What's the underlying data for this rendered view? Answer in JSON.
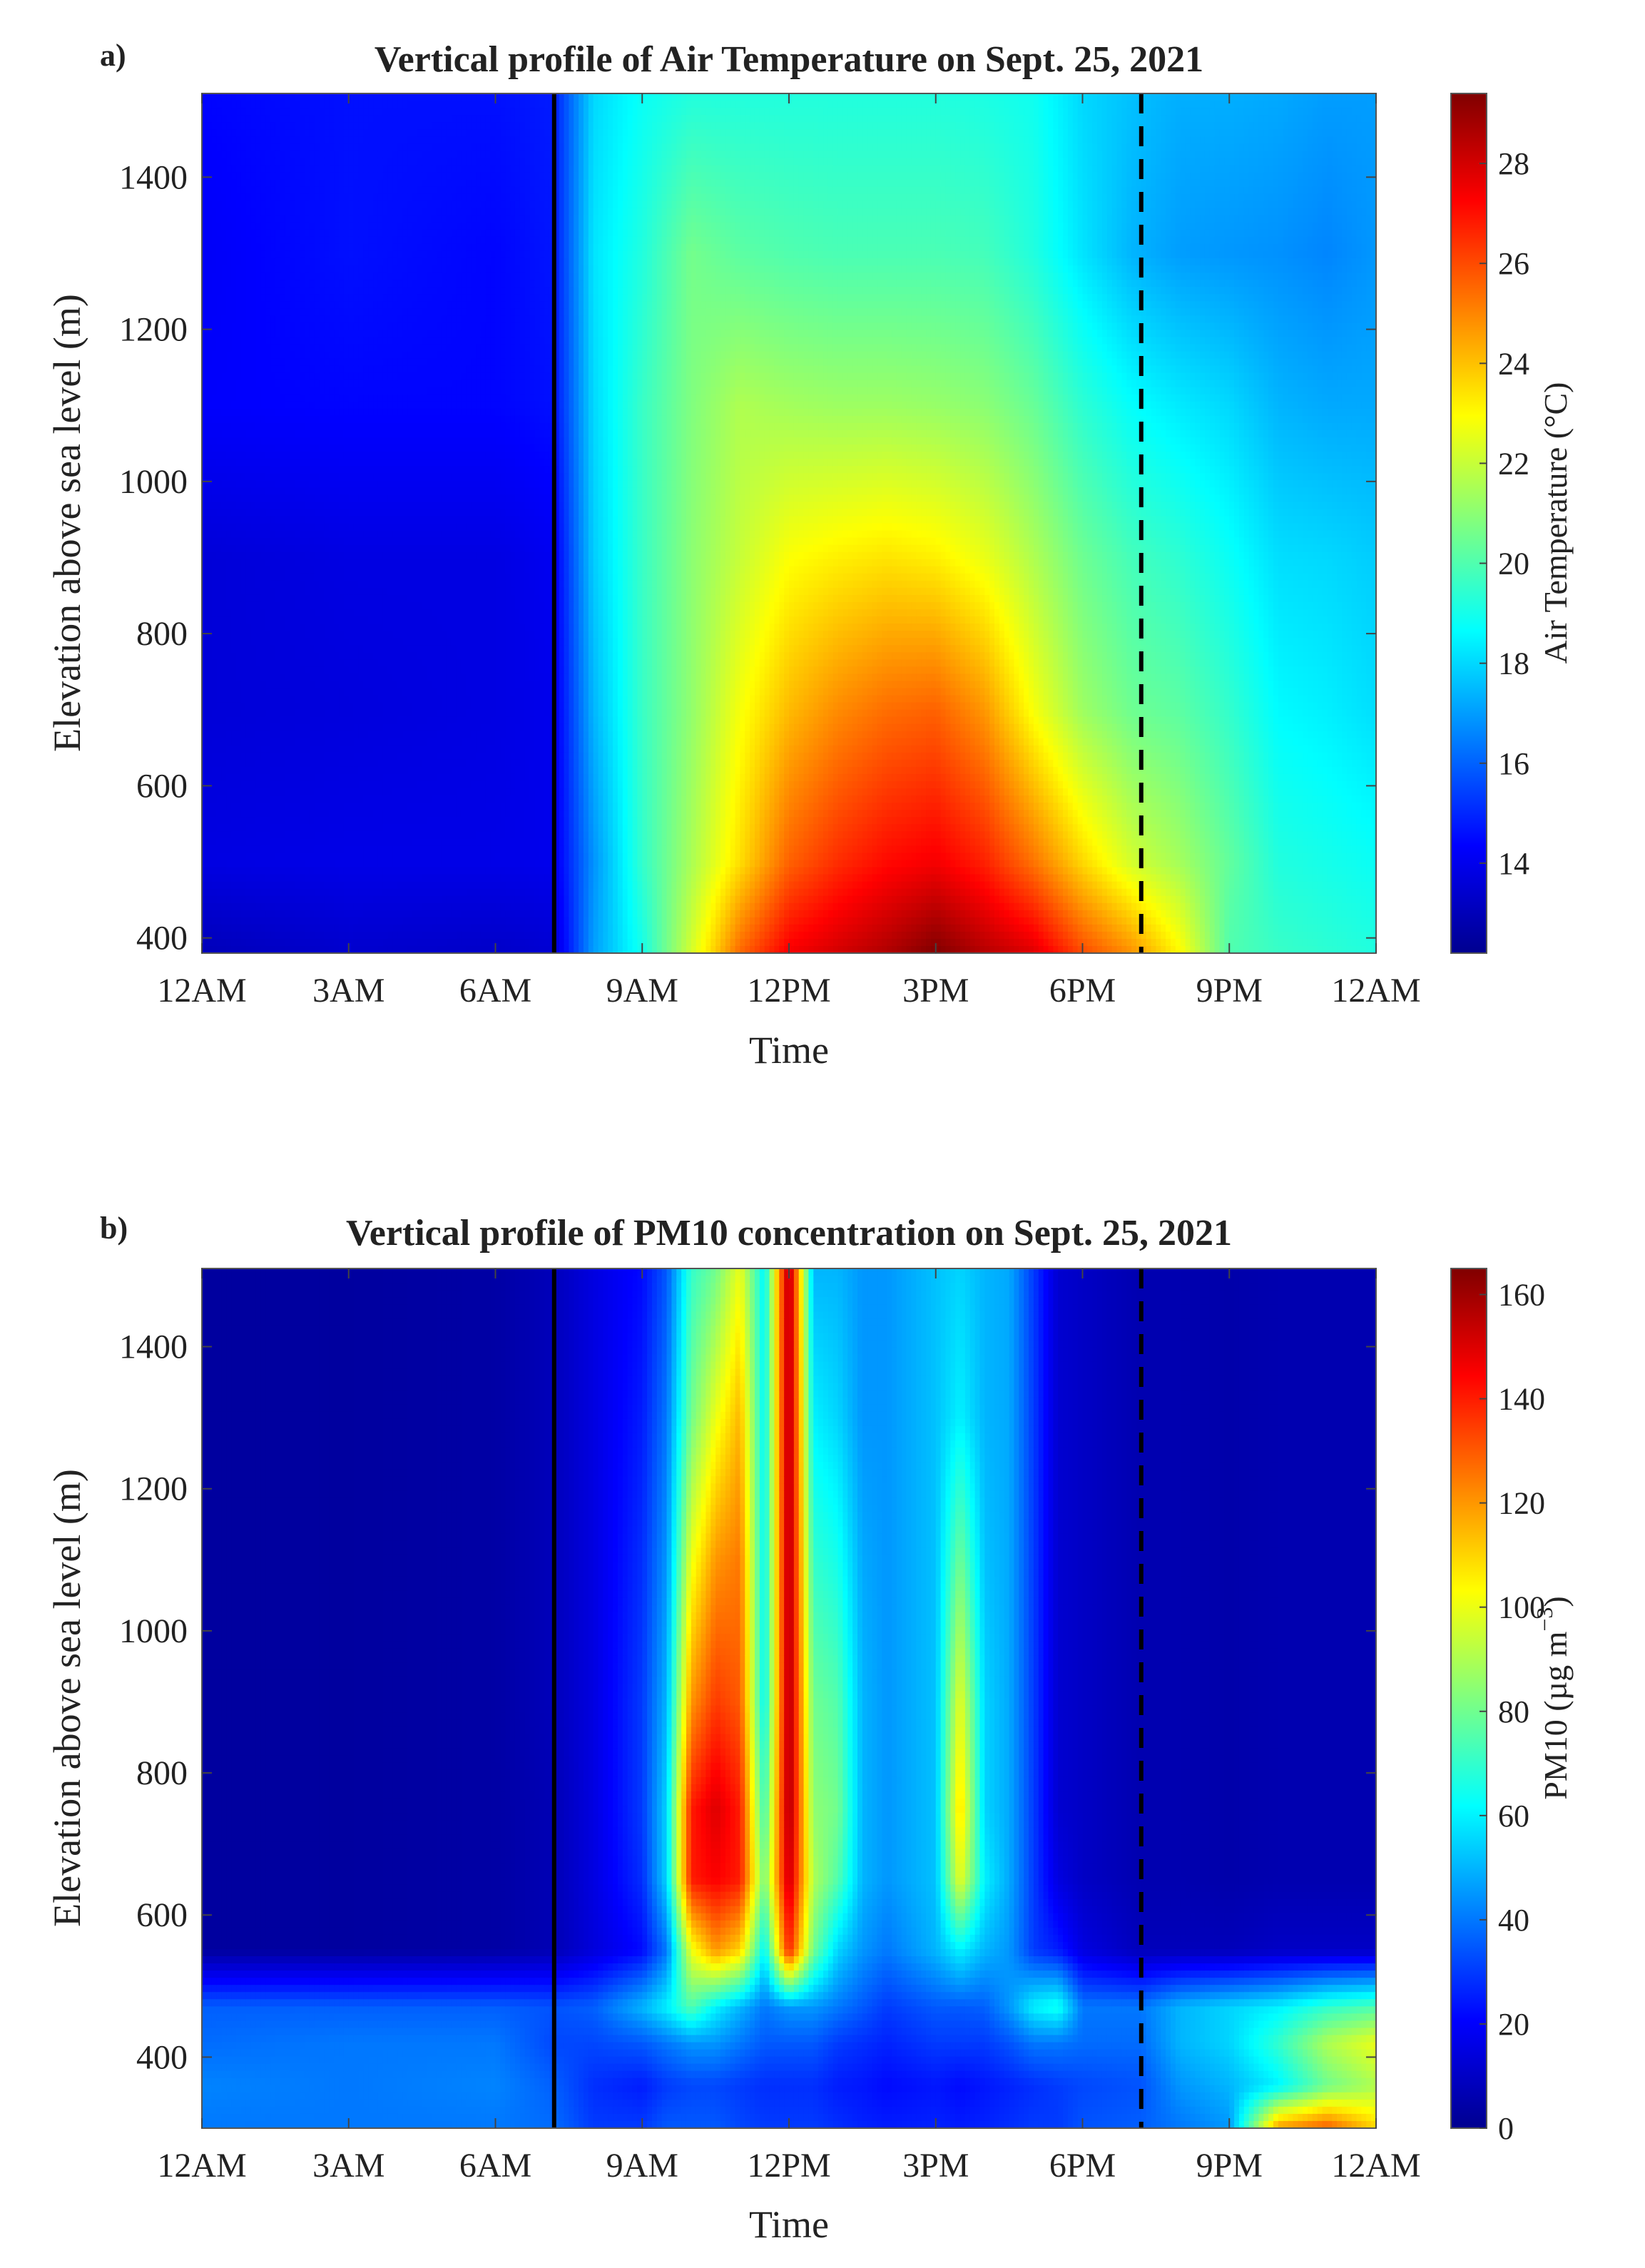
{
  "chart_data": [
    {
      "type": "heatmap",
      "panel_label": "a)",
      "title": "Vertical profile of Air Temperature on Sept. 25, 2021",
      "xlabel": "Time",
      "ylabel": "Elevation above sea level (m)",
      "xlim": [
        0,
        24
      ],
      "ylim": [
        380,
        1510
      ],
      "x_ticks": [
        0,
        3,
        6,
        9,
        12,
        15,
        18,
        21,
        24
      ],
      "x_tick_labels": [
        "12AM",
        "3AM",
        "6AM",
        "9AM",
        "12PM",
        "3PM",
        "6PM",
        "9PM",
        "12AM"
      ],
      "y_ticks": [
        400,
        600,
        800,
        1000,
        1200,
        1400
      ],
      "y_tick_labels": [
        "400",
        "600",
        "800",
        "1000",
        "1200",
        "1400"
      ],
      "colorbar": {
        "label": "Air Temperature (°C)",
        "range": [
          12.2,
          29.4
        ],
        "ticks": [
          14,
          16,
          18,
          20,
          22,
          24,
          26,
          28
        ],
        "tick_labels": [
          "14",
          "16",
          "18",
          "20",
          "22",
          "24",
          "26",
          "28"
        ]
      },
      "reference_lines": [
        {
          "x": 7.2,
          "style": "solid",
          "color": "#000000"
        },
        {
          "x": 19.2,
          "style": "dashed",
          "color": "#000000"
        }
      ],
      "grid_x": [
        0,
        3,
        6,
        7.2,
        8,
        9,
        10,
        11,
        12,
        13,
        14,
        15,
        16,
        17,
        18,
        19,
        20,
        21,
        22,
        23,
        24
      ],
      "grid_y": [
        380,
        500,
        700,
        900,
        1100,
        1300,
        1510
      ],
      "z": [
        [
          13.0,
          13.8,
          13.6,
          13.6,
          14.3,
          14.2,
          14.4
        ],
        [
          13.4,
          13.9,
          13.7,
          13.8,
          14.4,
          14.6,
          14.6
        ],
        [
          13.3,
          13.9,
          13.8,
          13.8,
          14.4,
          14.4,
          14.6
        ],
        [
          13.5,
          14.0,
          14.0,
          14.1,
          14.6,
          14.7,
          14.8
        ],
        [
          17.0,
          16.8,
          17.4,
          17.8,
          18.0,
          18.2,
          18.0
        ],
        [
          19.0,
          19.5,
          19.6,
          19.6,
          19.6,
          19.2,
          18.8
        ],
        [
          22.2,
          21.5,
          21.1,
          21.0,
          20.8,
          20.6,
          19.2
        ],
        [
          25.5,
          23.5,
          22.8,
          22.0,
          21.6,
          20.2,
          19.2
        ],
        [
          27.4,
          25.6,
          24.1,
          22.9,
          21.4,
          20.0,
          19.2
        ],
        [
          28.0,
          26.5,
          24.9,
          23.2,
          21.3,
          19.9,
          19.2
        ],
        [
          28.6,
          27.1,
          25.4,
          23.4,
          21.3,
          19.9,
          19.2
        ],
        [
          29.4,
          27.4,
          25.6,
          23.2,
          21.2,
          19.9,
          19.2
        ],
        [
          28.5,
          26.7,
          24.7,
          22.6,
          21.0,
          19.8,
          19.1
        ],
        [
          27.8,
          25.3,
          22.8,
          21.6,
          20.4,
          19.2,
          18.9
        ],
        [
          26.0,
          23.6,
          21.3,
          20.5,
          19.4,
          18.2,
          18.0
        ],
        [
          24.8,
          22.2,
          20.5,
          19.8,
          18.7,
          17.4,
          17.6
        ],
        [
          23.0,
          21.4,
          20.2,
          19.4,
          18.3,
          17.0,
          17.3
        ],
        [
          20.0,
          20.3,
          19.5,
          18.8,
          18.0,
          16.9,
          17.3
        ],
        [
          19.6,
          19.2,
          18.6,
          18.1,
          17.4,
          16.8,
          17.2
        ],
        [
          19.4,
          19.0,
          18.4,
          18.0,
          17.2,
          16.6,
          17.0
        ],
        [
          19.2,
          18.8,
          18.1,
          17.8,
          17.2,
          16.9,
          17.0
        ]
      ]
    },
    {
      "type": "heatmap",
      "panel_label": "b)",
      "title": "Vertical profile of PM10 concentration on Sept. 25, 2021",
      "xlabel": "Time",
      "ylabel": "Elevation above sea level (m)",
      "xlim": [
        0,
        24
      ],
      "ylim": [
        300,
        1510
      ],
      "x_ticks": [
        0,
        3,
        6,
        9,
        12,
        15,
        18,
        21,
        24
      ],
      "x_tick_labels": [
        "12AM",
        "3AM",
        "6AM",
        "9AM",
        "12PM",
        "3PM",
        "6PM",
        "9PM",
        "12AM"
      ],
      "y_ticks": [
        400,
        600,
        800,
        1000,
        1200,
        1400
      ],
      "y_tick_labels": [
        "400",
        "600",
        "800",
        "1000",
        "1200",
        "1400"
      ],
      "colorbar": {
        "label": "PM10 (µg m",
        "label_exponent": "−3",
        "label_close": ")",
        "range": [
          0,
          165
        ],
        "ticks": [
          0,
          20,
          40,
          60,
          80,
          100,
          120,
          140,
          160
        ],
        "tick_labels": [
          "0",
          "20",
          "40",
          "60",
          "80",
          "100",
          "120",
          "140",
          "160"
        ]
      },
      "reference_lines": [
        {
          "x": 7.2,
          "style": "solid",
          "color": "#000000"
        },
        {
          "x": 19.2,
          "style": "dashed",
          "color": "#000000"
        }
      ],
      "grid_x": [
        0,
        3,
        6,
        7.2,
        8,
        9,
        9.5,
        10,
        10.5,
        11,
        11.5,
        12,
        12.5,
        13,
        13.5,
        14,
        15,
        15.5,
        16,
        16.5,
        17,
        17.5,
        18,
        19.2,
        20,
        21,
        22,
        23,
        24
      ],
      "grid_y": [
        300,
        360,
        420,
        470,
        550,
        650,
        750,
        900,
        1100,
        1300,
        1510
      ],
      "z": [
        [
          40,
          42,
          38,
          36,
          3,
          3,
          3,
          3,
          3,
          3,
          3
        ],
        [
          40,
          40,
          40,
          36,
          3,
          3,
          3,
          3,
          3,
          3,
          3
        ],
        [
          40,
          42,
          40,
          36,
          4,
          4,
          4,
          4,
          4,
          4,
          4
        ],
        [
          38,
          36,
          32,
          34,
          7,
          7,
          7,
          8,
          8,
          8,
          8
        ],
        [
          30,
          28,
          32,
          36,
          14,
          15,
          15,
          15,
          15,
          15,
          15
        ],
        [
          30,
          25,
          35,
          50,
          22,
          28,
          30,
          30,
          28,
          25,
          22
        ],
        [
          35,
          30,
          40,
          60,
          40,
          55,
          55,
          50,
          45,
          40,
          35
        ],
        [
          35,
          32,
          45,
          75,
          100,
          140,
          140,
          120,
          100,
          80,
          70
        ],
        [
          35,
          32,
          45,
          60,
          120,
          145,
          150,
          135,
          120,
          100,
          80
        ],
        [
          32,
          30,
          40,
          50,
          110,
          140,
          140,
          130,
          125,
          115,
          100
        ],
        [
          30,
          28,
          35,
          40,
          60,
          80,
          70,
          60,
          60,
          60,
          60
        ],
        [
          30,
          28,
          35,
          45,
          140,
          155,
          160,
          160,
          160,
          160,
          160
        ],
        [
          30,
          28,
          35,
          45,
          80,
          90,
          85,
          80,
          70,
          60,
          50
        ],
        [
          28,
          25,
          30,
          40,
          55,
          75,
          80,
          75,
          65,
          55,
          50
        ],
        [
          26,
          24,
          28,
          35,
          45,
          50,
          50,
          50,
          48,
          45,
          45
        ],
        [
          25,
          22,
          26,
          30,
          40,
          45,
          45,
          45,
          45,
          45,
          45
        ],
        [
          26,
          24,
          30,
          35,
          50,
          52,
          52,
          52,
          52,
          52,
          52
        ],
        [
          25,
          22,
          30,
          35,
          60,
          100,
          110,
          100,
          80,
          60,
          55
        ],
        [
          26,
          24,
          30,
          36,
          50,
          60,
          55,
          55,
          52,
          50,
          50
        ],
        [
          28,
          26,
          34,
          45,
          45,
          48,
          48,
          48,
          48,
          48,
          48
        ],
        [
          30,
          28,
          40,
          60,
          30,
          30,
          30,
          30,
          30,
          30,
          30
        ],
        [
          30,
          30,
          40,
          65,
          25,
          15,
          12,
          12,
          12,
          12,
          12
        ],
        [
          34,
          32,
          38,
          40,
          15,
          10,
          10,
          10,
          10,
          10,
          10
        ],
        [
          36,
          34,
          38,
          40,
          8,
          6,
          6,
          6,
          6,
          6,
          6
        ],
        [
          40,
          45,
          50,
          50,
          8,
          6,
          6,
          6,
          6,
          6,
          6
        ],
        [
          45,
          50,
          55,
          55,
          8,
          5,
          5,
          5,
          5,
          5,
          5
        ],
        [
          120,
          60,
          70,
          60,
          10,
          6,
          6,
          6,
          6,
          6,
          6
        ],
        [
          130,
          80,
          90,
          70,
          10,
          6,
          6,
          6,
          6,
          6,
          6
        ],
        [
          110,
          90,
          100,
          75,
          10,
          6,
          6,
          6,
          6,
          6,
          6
        ]
      ]
    }
  ]
}
